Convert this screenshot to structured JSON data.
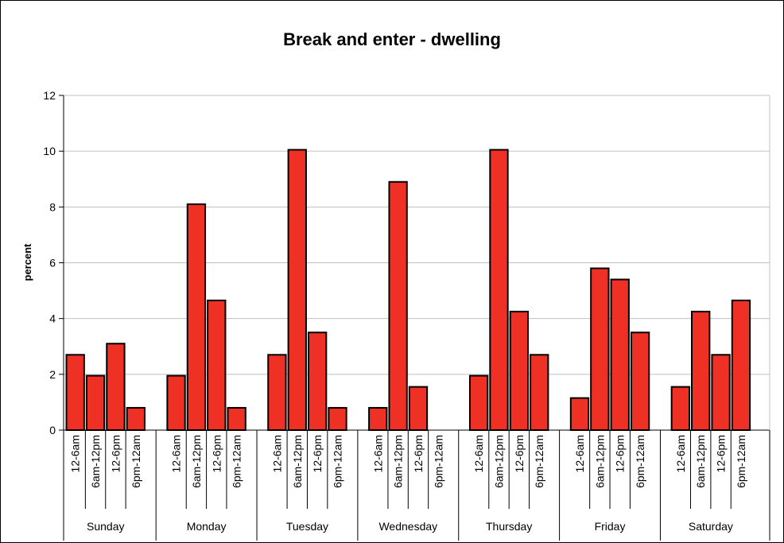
{
  "chart_data": {
    "type": "bar",
    "title": "Break and enter - dwelling",
    "xlabel": "",
    "ylabel": "percent",
    "ylim": [
      0,
      12
    ],
    "yticks": [
      "0",
      "2",
      "4",
      "6",
      "8",
      "10",
      "12"
    ],
    "grid": true,
    "legend": "none",
    "bar_color": "#ee3124",
    "time_bands": [
      "12-6am",
      "6am-12pm",
      "12-6pm",
      "6pm-12am"
    ],
    "groups": [
      {
        "day": "Sunday",
        "values": [
          2.7,
          1.95,
          3.1,
          0.8
        ]
      },
      {
        "day": "Monday",
        "values": [
          1.95,
          8.1,
          4.65,
          0.8
        ]
      },
      {
        "day": "Tuesday",
        "values": [
          2.7,
          10.05,
          3.5,
          0.8
        ]
      },
      {
        "day": "Wednesday",
        "values": [
          0.8,
          8.9,
          1.55,
          0
        ]
      },
      {
        "day": "Thursday",
        "values": [
          1.95,
          10.05,
          4.25,
          2.7
        ]
      },
      {
        "day": "Friday",
        "values": [
          1.15,
          5.8,
          5.4,
          3.5
        ]
      },
      {
        "day": "Saturday",
        "values": [
          1.55,
          4.25,
          2.7,
          4.65
        ]
      }
    ]
  }
}
